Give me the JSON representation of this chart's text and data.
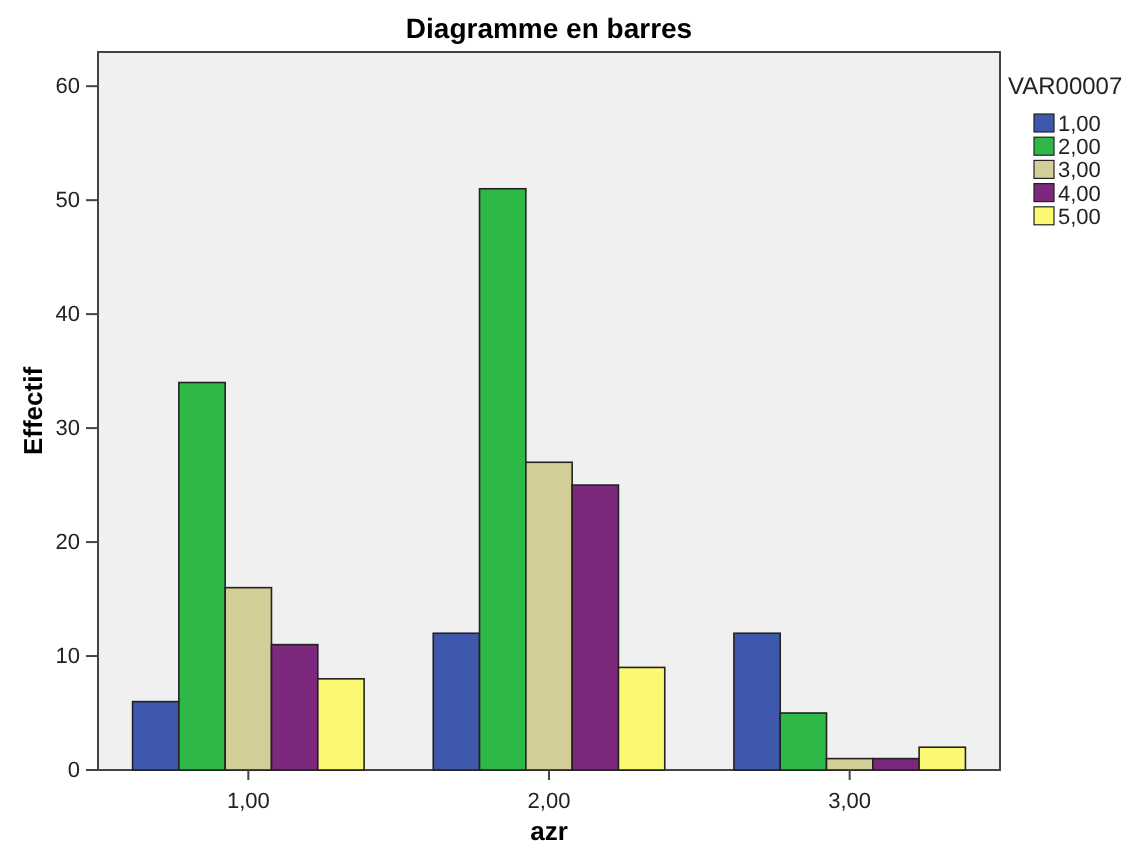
{
  "chart_data": {
    "type": "bar",
    "title": "Diagramme en barres",
    "xlabel": "azr",
    "ylabel": "Effectif",
    "legend_title": "VAR00007",
    "categories": [
      "1,00",
      "2,00",
      "3,00"
    ],
    "series": [
      {
        "name": "1,00",
        "color": "#3e58ac",
        "values": [
          6,
          12,
          12
        ]
      },
      {
        "name": "2,00",
        "color": "#2eb848",
        "values": [
          34,
          51,
          5
        ]
      },
      {
        "name": "3,00",
        "color": "#d3ce97",
        "values": [
          16,
          27,
          1
        ]
      },
      {
        "name": "4,00",
        "color": "#7c287d",
        "values": [
          11,
          25,
          1
        ]
      },
      {
        "name": "5,00",
        "color": "#fbf873",
        "values": [
          8,
          9,
          2
        ]
      }
    ],
    "ylim": [
      0,
      63
    ],
    "yticks": [
      0,
      10,
      20,
      30,
      40,
      50,
      60
    ],
    "grid": false,
    "legend": "top right"
  }
}
